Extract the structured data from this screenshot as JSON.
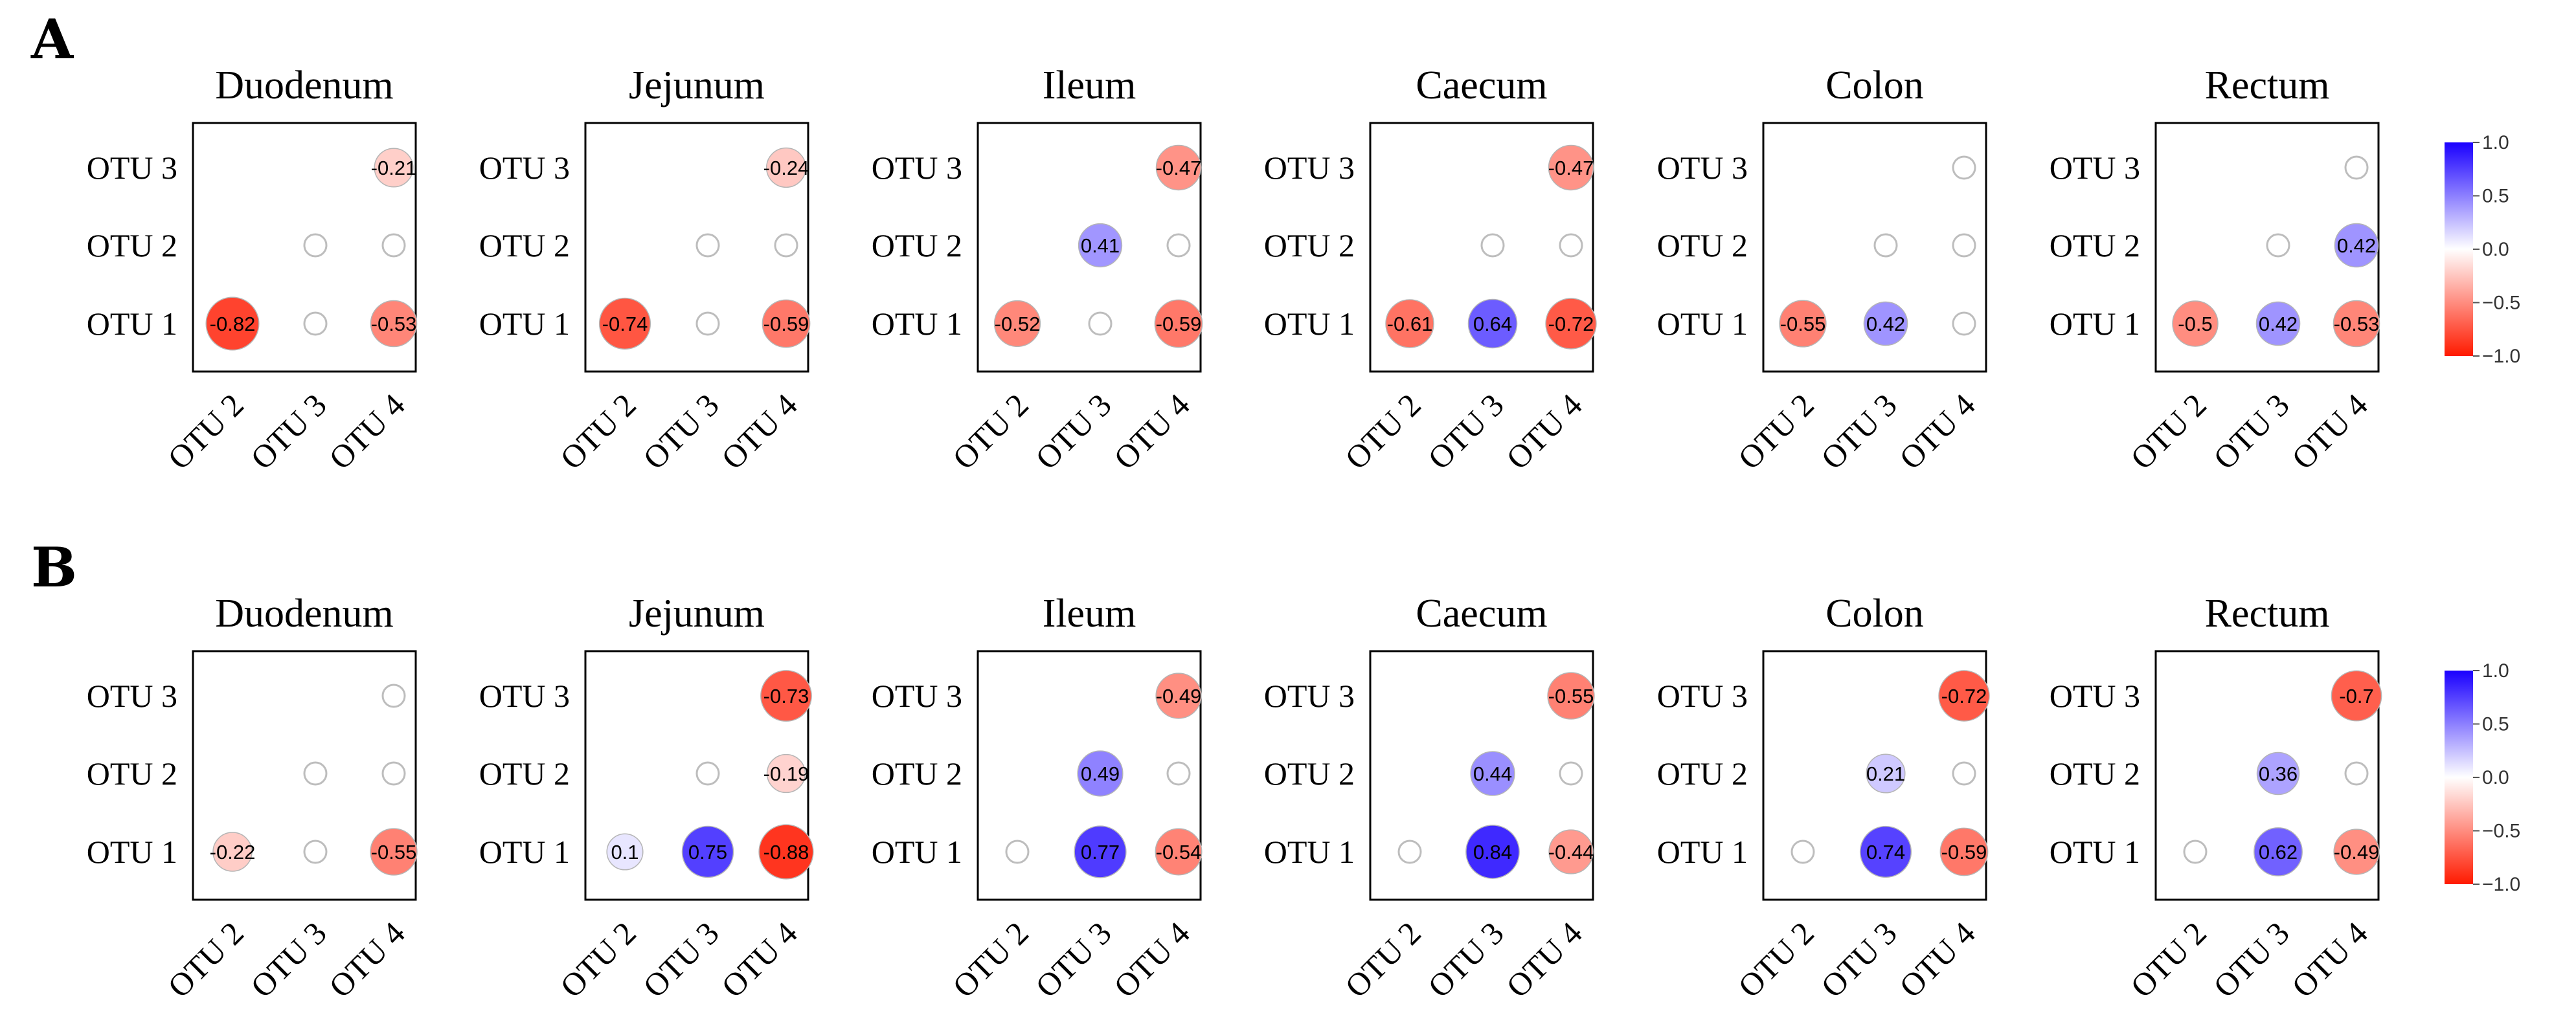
{
  "chart_data": {
    "type": "correlation-matrix",
    "color_scale": {
      "min": -1.0,
      "max": 1.0,
      "low": "#ff1a00",
      "mid": "#ffffff",
      "high": "#1a00ff"
    },
    "row_labels": [
      "OTU 3",
      "OTU 2",
      "OTU 1"
    ],
    "col_labels": [
      "OTU 2",
      "OTU 3",
      "OTU 4"
    ],
    "panels": [
      {
        "label": "A",
        "legend": {
          "ticks": [
            "1.0",
            "0.5",
            "0.0",
            "−0.5",
            "−1.0"
          ]
        },
        "tissues": [
          {
            "name": "Duodenum",
            "matrix": [
              [
                null,
                null,
                -0.21
              ],
              [
                null,
                null,
                null
              ],
              [
                -0.82,
                null,
                -0.53
              ]
            ]
          },
          {
            "name": "Jejunum",
            "matrix": [
              [
                null,
                null,
                -0.24
              ],
              [
                null,
                null,
                null
              ],
              [
                -0.74,
                null,
                -0.59
              ]
            ]
          },
          {
            "name": "Ileum",
            "matrix": [
              [
                null,
                null,
                -0.47
              ],
              [
                null,
                0.41,
                null
              ],
              [
                -0.52,
                null,
                -0.59
              ]
            ]
          },
          {
            "name": "Caecum",
            "matrix": [
              [
                null,
                null,
                -0.47
              ],
              [
                null,
                null,
                null
              ],
              [
                -0.61,
                0.64,
                -0.72
              ]
            ]
          },
          {
            "name": "Colon",
            "matrix": [
              [
                null,
                null,
                null
              ],
              [
                null,
                null,
                null
              ],
              [
                -0.55,
                0.42,
                null
              ]
            ]
          },
          {
            "name": "Rectum",
            "matrix": [
              [
                null,
                null,
                null
              ],
              [
                null,
                null,
                0.42
              ],
              [
                -0.5,
                0.42,
                -0.53
              ]
            ]
          }
        ]
      },
      {
        "label": "B",
        "legend": {
          "ticks": [
            "1.0",
            "0.5",
            "0.0",
            "−0.5",
            "−1.0"
          ]
        },
        "tissues": [
          {
            "name": "Duodenum",
            "matrix": [
              [
                null,
                null,
                null
              ],
              [
                null,
                null,
                null
              ],
              [
                -0.22,
                null,
                -0.55
              ]
            ]
          },
          {
            "name": "Jejunum",
            "matrix": [
              [
                null,
                null,
                -0.73
              ],
              [
                null,
                null,
                -0.19
              ],
              [
                0.1,
                0.75,
                -0.88
              ]
            ]
          },
          {
            "name": "Ileum",
            "matrix": [
              [
                null,
                null,
                -0.49
              ],
              [
                null,
                0.49,
                null
              ],
              [
                null,
                0.77,
                -0.54
              ]
            ]
          },
          {
            "name": "Caecum",
            "matrix": [
              [
                null,
                null,
                -0.55
              ],
              [
                null,
                0.44,
                null
              ],
              [
                null,
                0.84,
                -0.44
              ]
            ]
          },
          {
            "name": "Colon",
            "matrix": [
              [
                null,
                null,
                -0.72
              ],
              [
                null,
                0.21,
                null
              ],
              [
                null,
                0.74,
                -0.59
              ]
            ]
          },
          {
            "name": "Rectum",
            "matrix": [
              [
                null,
                null,
                -0.7
              ],
              [
                null,
                0.36,
                null
              ],
              [
                null,
                0.62,
                -0.49
              ]
            ]
          }
        ]
      }
    ]
  }
}
